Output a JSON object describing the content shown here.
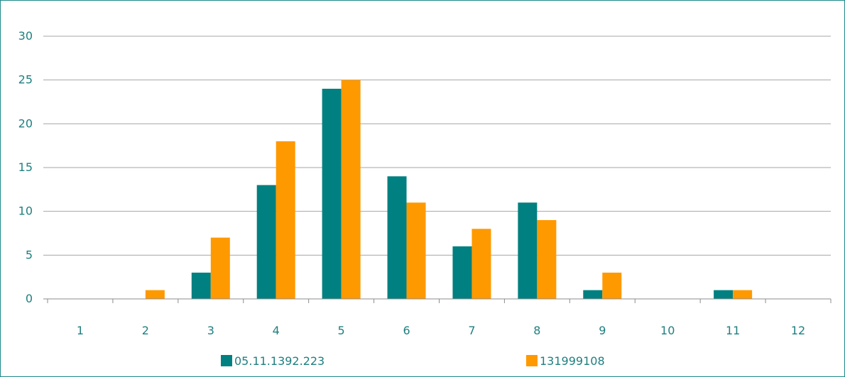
{
  "chart_data": {
    "type": "bar",
    "categories": [
      "1",
      "2",
      "3",
      "4",
      "5",
      "6",
      "7",
      "8",
      "9",
      "10",
      "11",
      "12"
    ],
    "series": [
      {
        "name": "05.11.1392.223",
        "color": "#008080",
        "values": [
          0,
          0,
          3,
          13,
          24,
          14,
          6,
          11,
          1,
          0,
          1,
          0
        ]
      },
      {
        "name": "131999108",
        "color": "#ff9900",
        "values": [
          0,
          1,
          7,
          18,
          25,
          11,
          8,
          9,
          3,
          0,
          1,
          0
        ]
      }
    ],
    "ylim": [
      0,
      30
    ],
    "yticks": [
      0,
      5,
      10,
      15,
      20,
      25,
      30
    ],
    "grid": true,
    "legend_position": "bottom",
    "title": "",
    "xlabel": "",
    "ylabel": ""
  }
}
